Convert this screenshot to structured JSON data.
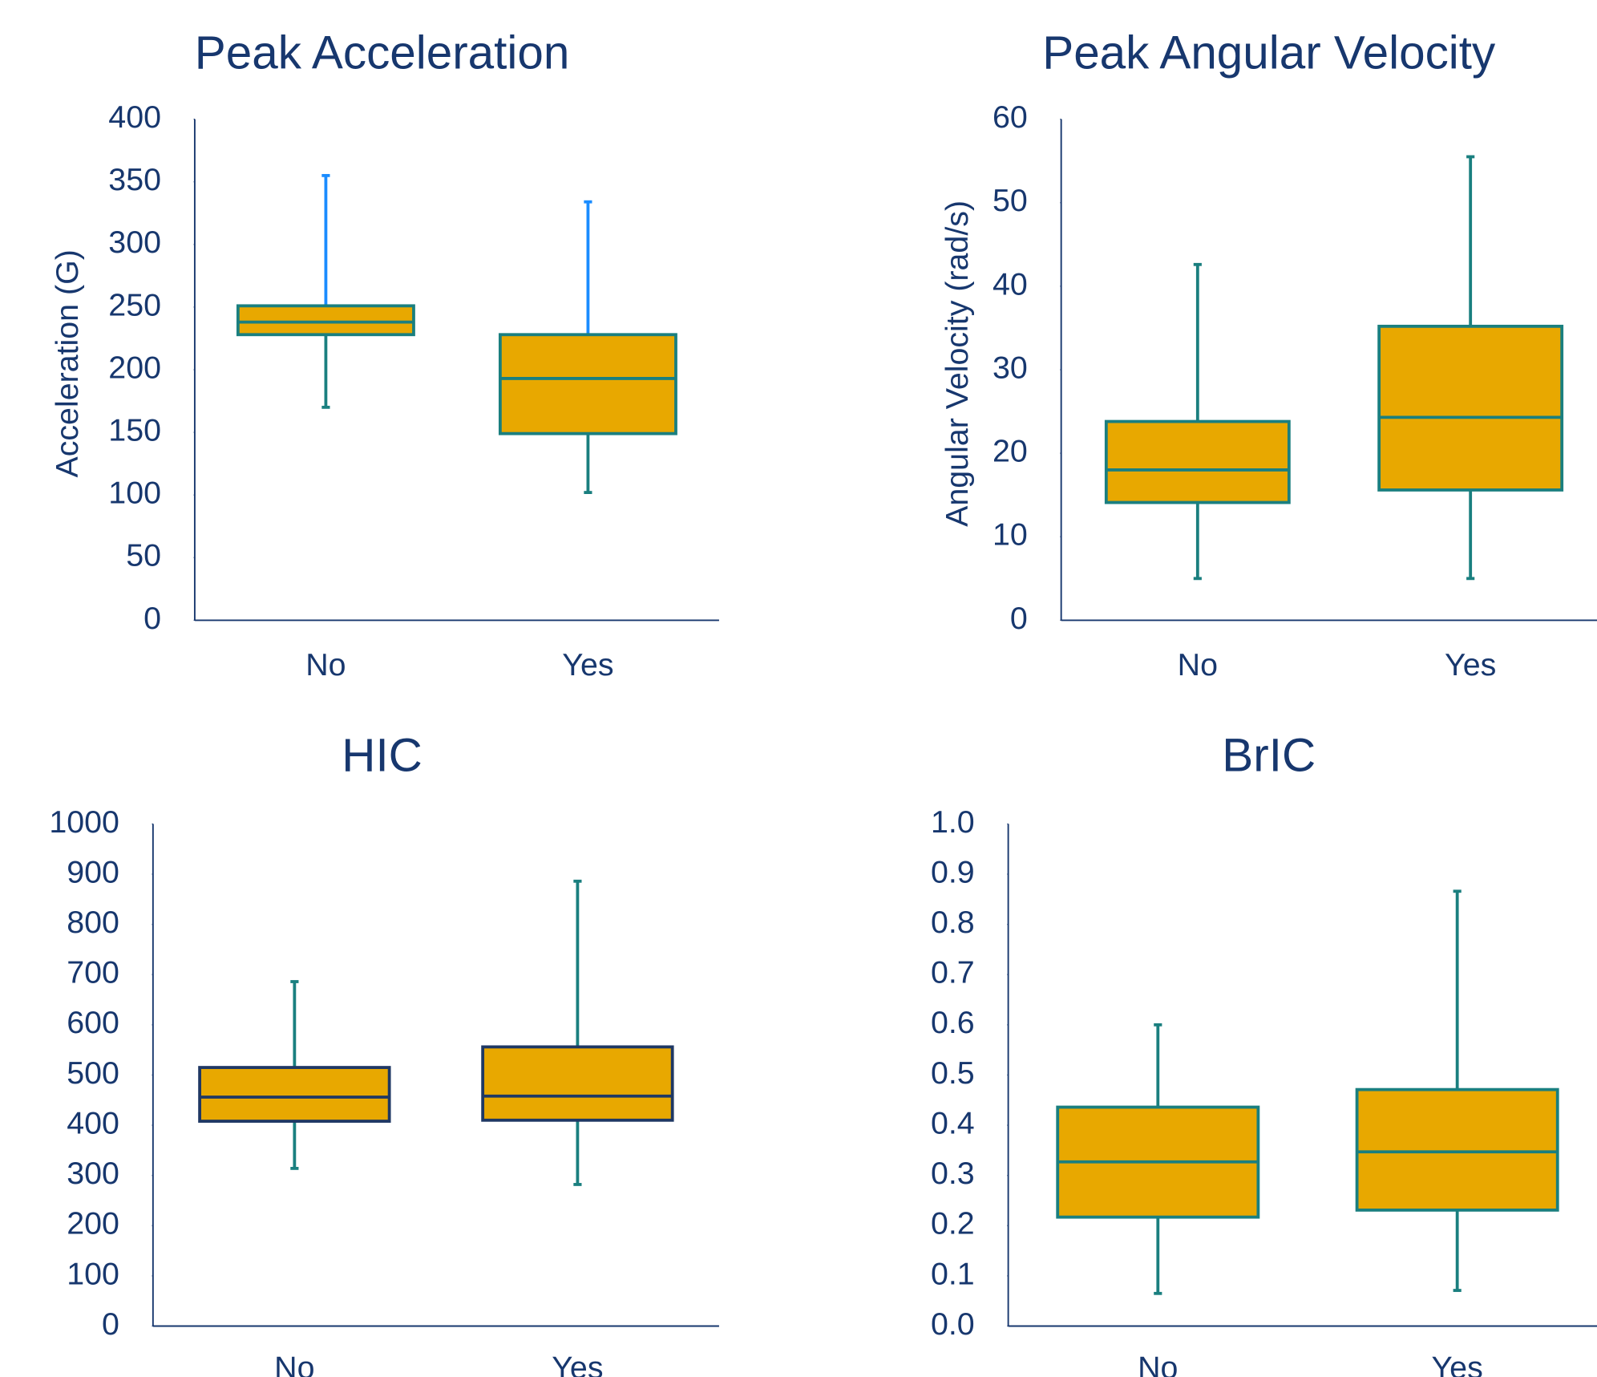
{
  "chart_data": [
    {
      "type": "box",
      "title": "Peak Acceleration",
      "ylabel": "Acceleration (G)",
      "categories": [
        "No",
        "Yes"
      ],
      "boxes": [
        {
          "min": 170,
          "q1": 228,
          "median": 238,
          "q3": 251,
          "max": 355
        },
        {
          "min": 102,
          "q1": 149,
          "median": 193,
          "q3": 228,
          "max": 334
        }
      ],
      "ylim": [
        0,
        400
      ],
      "yticks": [
        0,
        50,
        100,
        150,
        200,
        250,
        300,
        350,
        400
      ],
      "fill_color": "#e8a800",
      "edge_color": "#1a7f7f",
      "whisker_color": "#1a7f7f",
      "upper_whisker_color": "#1a8cff"
    },
    {
      "type": "box",
      "title": "Peak Angular Velocity",
      "ylabel": "Angular Velocity (rad/s)",
      "categories": [
        "No",
        "Yes"
      ],
      "boxes": [
        {
          "min": 5,
          "q1": 14.1,
          "median": 18,
          "q3": 23.8,
          "max": 42.6
        },
        {
          "min": 5,
          "q1": 15.6,
          "median": 24.3,
          "q3": 35.2,
          "max": 55.5
        }
      ],
      "ylim": [
        0,
        60
      ],
      "yticks": [
        0,
        10,
        20,
        30,
        40,
        50,
        60
      ],
      "fill_color": "#e8a800",
      "edge_color": "#1a7f7f",
      "whisker_color": "#1a7f7f",
      "upper_whisker_color": "#1a7f7f"
    },
    {
      "type": "box",
      "title": "HIC",
      "categories": [
        "No",
        "Yes"
      ],
      "boxes": [
        {
          "min": 314,
          "q1": 408,
          "median": 456,
          "q3": 515,
          "max": 686
        },
        {
          "min": 282,
          "q1": 410,
          "median": 458,
          "q3": 556,
          "max": 886
        }
      ],
      "ylim": [
        0,
        1000
      ],
      "yticks": [
        0,
        100,
        200,
        300,
        400,
        500,
        600,
        700,
        800,
        900,
        1000
      ],
      "fill_color": "#e8a800",
      "edge_color": "#1f3864",
      "whisker_color": "#1a7f7f",
      "upper_whisker_color": "#1a7f7f"
    },
    {
      "type": "box",
      "title": "BrIC",
      "categories": [
        "No",
        "Yes"
      ],
      "boxes": [
        {
          "min": 0.065,
          "q1": 0.217,
          "median": 0.327,
          "q3": 0.436,
          "max": 0.6
        },
        {
          "min": 0.071,
          "q1": 0.231,
          "median": 0.347,
          "q3": 0.471,
          "max": 0.866
        }
      ],
      "ylim": [
        0,
        1
      ],
      "yticks": [
        {
          "value": 0,
          "label": "0.0"
        },
        0.1,
        0.2,
        0.3,
        0.4,
        0.5,
        0.6,
        0.7,
        0.8,
        0.9,
        {
          "value": 1,
          "label": "1.0"
        }
      ],
      "fill_color": "#e8a800",
      "edge_color": "#1a7f7f",
      "whisker_color": "#1a7f7f",
      "upper_whisker_color": "#1a7f7f"
    }
  ]
}
